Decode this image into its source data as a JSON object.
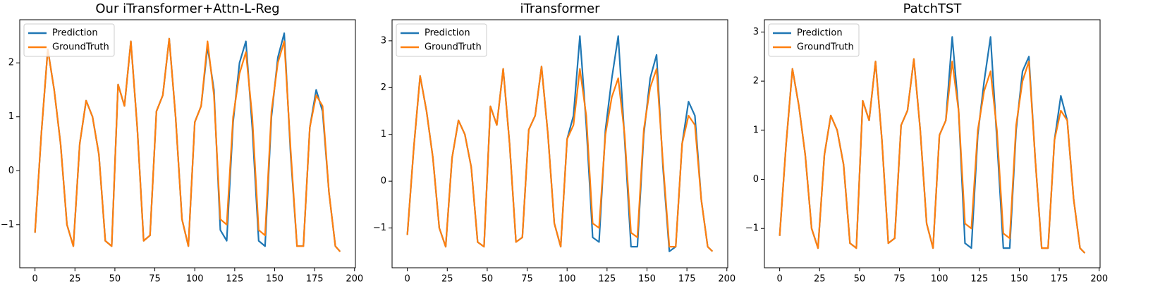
{
  "chart_data": [
    {
      "type": "line",
      "title": "Our iTransformer+Attn-L-Reg",
      "x": [
        0,
        4,
        8,
        12,
        16,
        20,
        24,
        28,
        32,
        36,
        40,
        44,
        48,
        52,
        56,
        60,
        64,
        68,
        72,
        76,
        80,
        84,
        88,
        92,
        96,
        100,
        104,
        108,
        112,
        116,
        120,
        124,
        128,
        132,
        136,
        140,
        144,
        148,
        152,
        156,
        160,
        164,
        168,
        172,
        176,
        180,
        184,
        188,
        191
      ],
      "series": [
        {
          "name": "Prediction",
          "color": "#1f77b4",
          "values": [
            -1.15,
            0.7,
            2.25,
            1.5,
            0.5,
            -1.0,
            -1.4,
            0.5,
            1.3,
            1.0,
            0.3,
            -1.3,
            -1.4,
            1.6,
            1.2,
            2.4,
            0.8,
            -1.3,
            -1.2,
            1.1,
            1.4,
            2.45,
            1.0,
            -0.9,
            -1.4,
            0.9,
            1.2,
            2.3,
            1.5,
            -1.1,
            -1.3,
            0.9,
            2.0,
            2.4,
            0.8,
            -1.3,
            -1.4,
            1.0,
            2.1,
            2.55,
            0.3,
            -1.4,
            -1.4,
            0.8,
            1.5,
            1.1,
            -0.4,
            -1.4,
            -1.5
          ]
        },
        {
          "name": "GroundTruth",
          "color": "#ff7f0e",
          "values": [
            -1.15,
            0.7,
            2.25,
            1.5,
            0.5,
            -1.0,
            -1.4,
            0.5,
            1.3,
            1.0,
            0.3,
            -1.3,
            -1.4,
            1.6,
            1.2,
            2.4,
            0.8,
            -1.3,
            -1.2,
            1.1,
            1.4,
            2.45,
            1.0,
            -0.9,
            -1.4,
            0.9,
            1.2,
            2.4,
            1.4,
            -0.9,
            -1.0,
            1.0,
            1.8,
            2.2,
            1.0,
            -1.1,
            -1.2,
            1.1,
            2.0,
            2.4,
            0.4,
            -1.4,
            -1.4,
            0.8,
            1.4,
            1.2,
            -0.4,
            -1.4,
            -1.5
          ]
        }
      ],
      "xlim": [
        -9.55,
        200.55
      ],
      "ylim": [
        -1.8,
        2.8
      ],
      "xticks": [
        0,
        25,
        50,
        75,
        100,
        125,
        150,
        175,
        200
      ],
      "yticks": [
        {
          "value": -1,
          "label": "−1"
        },
        0,
        1,
        2
      ],
      "legend": "upper left"
    },
    {
      "type": "line",
      "title": "iTransformer",
      "x": [
        0,
        4,
        8,
        12,
        16,
        20,
        24,
        28,
        32,
        36,
        40,
        44,
        48,
        52,
        56,
        60,
        64,
        68,
        72,
        76,
        80,
        84,
        88,
        92,
        96,
        100,
        104,
        108,
        112,
        116,
        120,
        124,
        128,
        132,
        136,
        140,
        144,
        148,
        152,
        156,
        160,
        164,
        168,
        172,
        176,
        180,
        184,
        188,
        191
      ],
      "series": [
        {
          "name": "Prediction",
          "color": "#1f77b4",
          "values": [
            -1.15,
            0.7,
            2.25,
            1.5,
            0.5,
            -1.0,
            -1.4,
            0.5,
            1.3,
            1.0,
            0.3,
            -1.3,
            -1.4,
            1.6,
            1.2,
            2.4,
            0.8,
            -1.3,
            -1.2,
            1.1,
            1.4,
            2.45,
            1.0,
            -0.9,
            -1.4,
            0.9,
            1.4,
            3.1,
            1.2,
            -1.2,
            -1.3,
            1.1,
            2.2,
            3.1,
            0.9,
            -1.4,
            -1.4,
            1.0,
            2.2,
            2.7,
            0.3,
            -1.5,
            -1.4,
            0.8,
            1.7,
            1.4,
            -0.4,
            -1.4,
            -1.5
          ]
        },
        {
          "name": "GroundTruth",
          "color": "#ff7f0e",
          "values": [
            -1.15,
            0.7,
            2.25,
            1.5,
            0.5,
            -1.0,
            -1.4,
            0.5,
            1.3,
            1.0,
            0.3,
            -1.3,
            -1.4,
            1.6,
            1.2,
            2.4,
            0.8,
            -1.3,
            -1.2,
            1.1,
            1.4,
            2.45,
            1.0,
            -0.9,
            -1.4,
            0.9,
            1.2,
            2.4,
            1.4,
            -0.9,
            -1.0,
            1.0,
            1.8,
            2.2,
            1.0,
            -1.1,
            -1.2,
            1.1,
            2.0,
            2.4,
            0.4,
            -1.4,
            -1.4,
            0.8,
            1.4,
            1.2,
            -0.4,
            -1.4,
            -1.5
          ]
        }
      ],
      "xlim": [
        -9.55,
        200.55
      ],
      "ylim": [
        -1.85,
        3.45
      ],
      "xticks": [
        0,
        25,
        50,
        75,
        100,
        125,
        150,
        175,
        200
      ],
      "yticks": [
        {
          "value": -1,
          "label": "−1"
        },
        0,
        1,
        2,
        3
      ],
      "legend": "upper left"
    },
    {
      "type": "line",
      "title": "PatchTST",
      "x": [
        0,
        4,
        8,
        12,
        16,
        20,
        24,
        28,
        32,
        36,
        40,
        44,
        48,
        52,
        56,
        60,
        64,
        68,
        72,
        76,
        80,
        84,
        88,
        92,
        96,
        100,
        104,
        108,
        112,
        116,
        120,
        124,
        128,
        132,
        136,
        140,
        144,
        148,
        152,
        156,
        160,
        164,
        168,
        172,
        176,
        180,
        184,
        188,
        191
      ],
      "series": [
        {
          "name": "Prediction",
          "color": "#1f77b4",
          "values": [
            -1.15,
            0.7,
            2.25,
            1.5,
            0.5,
            -1.0,
            -1.4,
            0.5,
            1.3,
            1.0,
            0.3,
            -1.3,
            -1.4,
            1.6,
            1.2,
            2.4,
            0.8,
            -1.3,
            -1.2,
            1.1,
            1.4,
            2.45,
            1.0,
            -0.9,
            -1.4,
            0.9,
            1.2,
            2.9,
            1.4,
            -1.3,
            -1.4,
            0.9,
            2.0,
            2.9,
            0.8,
            -1.4,
            -1.4,
            1.0,
            2.2,
            2.5,
            0.4,
            -1.4,
            -1.4,
            0.8,
            1.7,
            1.2,
            -0.4,
            -1.4,
            -1.5
          ]
        },
        {
          "name": "GroundTruth",
          "color": "#ff7f0e",
          "values": [
            -1.15,
            0.7,
            2.25,
            1.5,
            0.5,
            -1.0,
            -1.4,
            0.5,
            1.3,
            1.0,
            0.3,
            -1.3,
            -1.4,
            1.6,
            1.2,
            2.4,
            0.8,
            -1.3,
            -1.2,
            1.1,
            1.4,
            2.45,
            1.0,
            -0.9,
            -1.4,
            0.9,
            1.2,
            2.4,
            1.4,
            -0.9,
            -1.0,
            1.0,
            1.8,
            2.2,
            1.0,
            -1.1,
            -1.2,
            1.1,
            2.0,
            2.4,
            0.4,
            -1.4,
            -1.4,
            0.8,
            1.4,
            1.2,
            -0.4,
            -1.4,
            -1.5
          ]
        }
      ],
      "xlim": [
        -9.55,
        200.55
      ],
      "ylim": [
        -1.8,
        3.25
      ],
      "xticks": [
        0,
        25,
        50,
        75,
        100,
        125,
        150,
        175,
        200
      ],
      "yticks": [
        {
          "value": -1,
          "label": "−1"
        },
        0,
        1,
        2,
        3
      ],
      "legend": "upper left"
    }
  ]
}
